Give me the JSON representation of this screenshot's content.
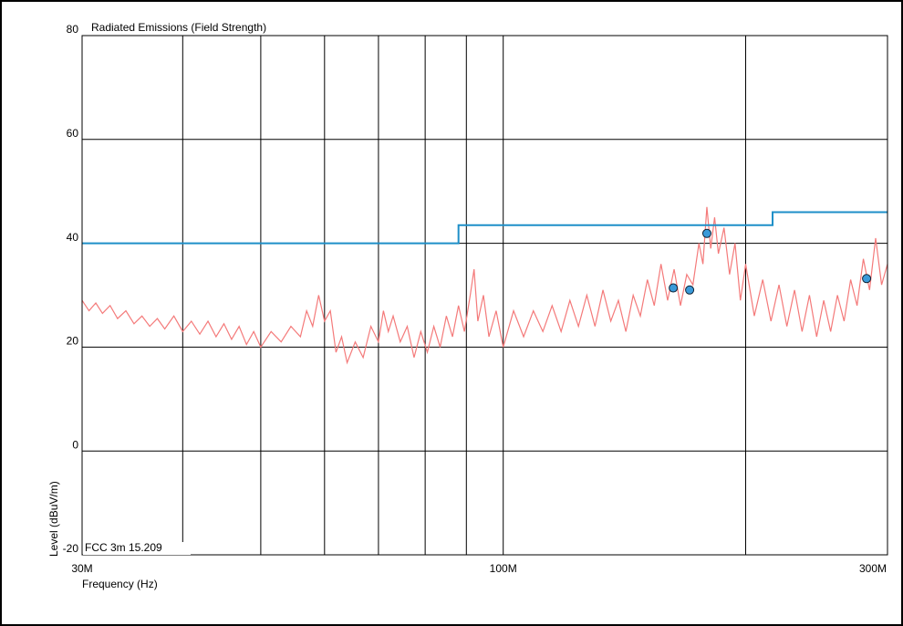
{
  "chart_data": {
    "type": "line",
    "title": "Radiated Emissions (Field Strength)",
    "xlabel": "Frequency (Hz)",
    "ylabel": "Level (dBuV/m)",
    "xscale": "log",
    "xlim": [
      30000000.0,
      300000000.0
    ],
    "xticks": [
      {
        "value": 30000000.0,
        "label": "30M"
      },
      {
        "value": 100000000.0,
        "label": "100M"
      },
      {
        "value": 300000000.0,
        "label": "300M"
      }
    ],
    "xminor": [
      40000000.0,
      50000000.0,
      60000000.0,
      70000000.0,
      80000000.0,
      90000000.0,
      200000000.0
    ],
    "ylim": [
      -20,
      80
    ],
    "yticks": [
      -20,
      0,
      20,
      40,
      60,
      80
    ],
    "grid": true,
    "legend": "lower left",
    "series": [
      {
        "color": "#f47a7a",
        "x": [
          30000000.0,
          30600000.0,
          31200000.0,
          31800000.0,
          32500000.0,
          33200000.0,
          34000000.0,
          34800000.0,
          35600000.0,
          36400000.0,
          37200000.0,
          38000000.0,
          39000000.0,
          40000000.0,
          41000000.0,
          42000000.0,
          43000000.0,
          44000000.0,
          45000000.0,
          46000000.0,
          47000000.0,
          48000000.0,
          49000000.0,
          50000000.0,
          51500000.0,
          53000000.0,
          54500000.0,
          56000000.0,
          57000000.0,
          58000000.0,
          59000000.0,
          60000000.0,
          61000000.0,
          62000000.0,
          63000000.0,
          64000000.0,
          65500000.0,
          67000000.0,
          68500000.0,
          70000000.0,
          71000000.0,
          72000000.0,
          73000000.0,
          74500000.0,
          76000000.0,
          77500000.0,
          79000000.0,
          80500000.0,
          82000000.0,
          83500000.0,
          85000000.0,
          86500000.0,
          88000000.0,
          89500000.0,
          91000000.0,
          92000000.0,
          93000000.0,
          94500000.0,
          96000000.0,
          98000000.0,
          100000000.0,
          103000000.0,
          106000000.0,
          109000000.0,
          112000000.0,
          115000000.0,
          118000000.0,
          121000000.0,
          124000000.0,
          127000000.0,
          130000000.0,
          133000000.0,
          136000000.0,
          139000000.0,
          142000000.0,
          145000000.0,
          148000000.0,
          151000000.0,
          154000000.0,
          157000000.0,
          160000000.0,
          163000000.0,
          166000000.0,
          169000000.0,
          172000000.0,
          175000000.0,
          177000000.0,
          179000000.0,
          181000000.0,
          183000000.0,
          185000000.0,
          188000000.0,
          191000000.0,
          194000000.0,
          197000000.0,
          200000000.0,
          205000000.0,
          210000000.0,
          215000000.0,
          220000000.0,
          225000000.0,
          230000000.0,
          235000000.0,
          240000000.0,
          245000000.0,
          250000000.0,
          255000000.0,
          260000000.0,
          265000000.0,
          270000000.0,
          275000000.0,
          280000000.0,
          285000000.0,
          290000000.0,
          295000000.0,
          300000000.0
        ],
        "values": [
          29,
          27,
          28.5,
          26.5,
          28,
          25.5,
          27,
          24.5,
          26,
          24,
          25.5,
          23.5,
          26,
          23,
          25,
          22.5,
          25,
          22,
          24.5,
          21.5,
          24,
          20.5,
          23,
          20,
          23,
          21,
          24,
          22,
          27,
          24,
          30,
          25,
          27,
          19,
          22,
          17,
          21,
          18,
          24,
          21,
          27,
          23,
          26,
          21,
          24,
          18,
          23,
          19,
          24,
          20,
          26,
          22,
          28,
          23,
          30,
          35,
          25,
          30,
          22,
          27,
          20,
          27,
          22,
          27,
          23,
          28,
          23,
          29,
          24,
          30,
          24,
          31,
          25,
          29,
          23,
          30,
          26,
          33,
          28,
          36,
          29,
          35,
          28,
          34,
          32,
          40,
          36,
          47,
          39,
          45,
          38,
          43,
          34,
          40,
          29,
          36,
          26,
          33,
          25,
          32,
          24,
          31,
          23,
          30,
          22,
          29,
          23,
          30,
          25,
          33,
          28,
          37,
          31,
          41,
          32,
          36
        ]
      },
      {
        "name": "FCC 3m 15.209",
        "color": "#1e8fc8",
        "x": [
          30000000.0,
          88000000.0,
          88000000.0,
          216000000.0,
          216000000.0,
          300000000.0
        ],
        "values": [
          40,
          40,
          43.5,
          43.5,
          46,
          46
        ]
      },
      {
        "type": "scatter",
        "color": "#3a9ad9",
        "x": [
          162600000.0,
          170400000.0,
          179000000.0,
          282600000.0
        ],
        "values": [
          31.4,
          31.0,
          41.9,
          33.2
        ]
      }
    ]
  }
}
